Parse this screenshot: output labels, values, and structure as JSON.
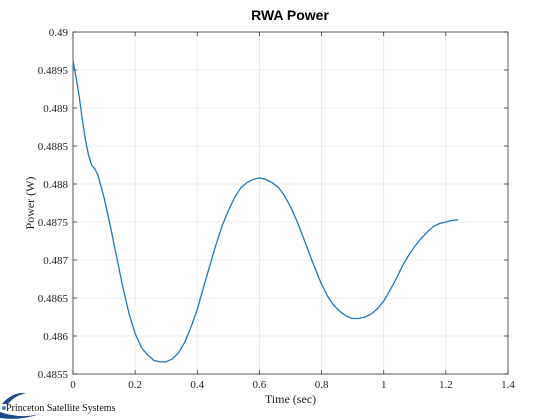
{
  "chart_data": {
    "type": "line",
    "title": "RWA Power",
    "xlabel": "Time (sec)",
    "ylabel": "Power (W)",
    "xlim": [
      0,
      1.4
    ],
    "ylim": [
      0.4855,
      0.49
    ],
    "grid": true,
    "x_ticks": [
      0,
      0.2,
      0.4,
      0.6,
      0.8,
      1,
      1.2,
      1.4
    ],
    "x_tick_labels": [
      "0",
      "0.2",
      "0.4",
      "0.6",
      "0.8",
      "1",
      "1.2",
      "1.4"
    ],
    "y_ticks": [
      0.4855,
      0.486,
      0.4865,
      0.487,
      0.4875,
      0.488,
      0.4885,
      0.489,
      0.4895,
      0.49
    ],
    "y_tick_labels": [
      "0.4855",
      "0.486",
      "0.4865",
      "0.487",
      "0.4875",
      "0.488",
      "0.4885",
      "0.489",
      "0.4895",
      "0.49"
    ],
    "series": [
      {
        "color": "#1f77b4",
        "x": [
          0,
          0.01,
          0.02,
          0.03,
          0.04,
          0.05,
          0.06,
          0.07,
          0.08,
          0.1,
          0.12,
          0.14,
          0.16,
          0.18,
          0.2,
          0.22,
          0.24,
          0.26,
          0.28,
          0.3,
          0.32,
          0.34,
          0.36,
          0.38,
          0.4,
          0.42,
          0.44,
          0.46,
          0.48,
          0.5,
          0.52,
          0.54,
          0.56,
          0.58,
          0.6,
          0.62,
          0.64,
          0.66,
          0.68,
          0.7,
          0.72,
          0.74,
          0.76,
          0.78,
          0.8,
          0.82,
          0.84,
          0.86,
          0.88,
          0.9,
          0.92,
          0.94,
          0.96,
          0.98,
          1.0,
          1.02,
          1.04,
          1.06,
          1.08,
          1.1,
          1.12,
          1.14,
          1.16,
          1.18,
          1.2,
          1.22,
          1.24
        ],
        "y": [
          0.48962,
          0.4894,
          0.48915,
          0.48885,
          0.48858,
          0.48838,
          0.48825,
          0.4882,
          0.48812,
          0.48782,
          0.48745,
          0.48705,
          0.48665,
          0.4863,
          0.48603,
          0.48585,
          0.48575,
          0.48568,
          0.48566,
          0.48566,
          0.4857,
          0.48578,
          0.48592,
          0.48612,
          0.48635,
          0.48664,
          0.48692,
          0.4872,
          0.48745,
          0.48765,
          0.48782,
          0.48795,
          0.48802,
          0.48806,
          0.48808,
          0.48806,
          0.48802,
          0.48796,
          0.48785,
          0.4877,
          0.48752,
          0.48731,
          0.48709,
          0.48688,
          0.48668,
          0.48652,
          0.4864,
          0.48632,
          0.48626,
          0.48623,
          0.48623,
          0.48625,
          0.48629,
          0.48636,
          0.48646,
          0.4866,
          0.48675,
          0.48692,
          0.48706,
          0.48718,
          0.48728,
          0.48737,
          0.48744,
          0.48748,
          0.4875,
          0.48752,
          0.48753
        ]
      }
    ]
  },
  "logo": {
    "text": "Princeton Satellite Systems"
  }
}
